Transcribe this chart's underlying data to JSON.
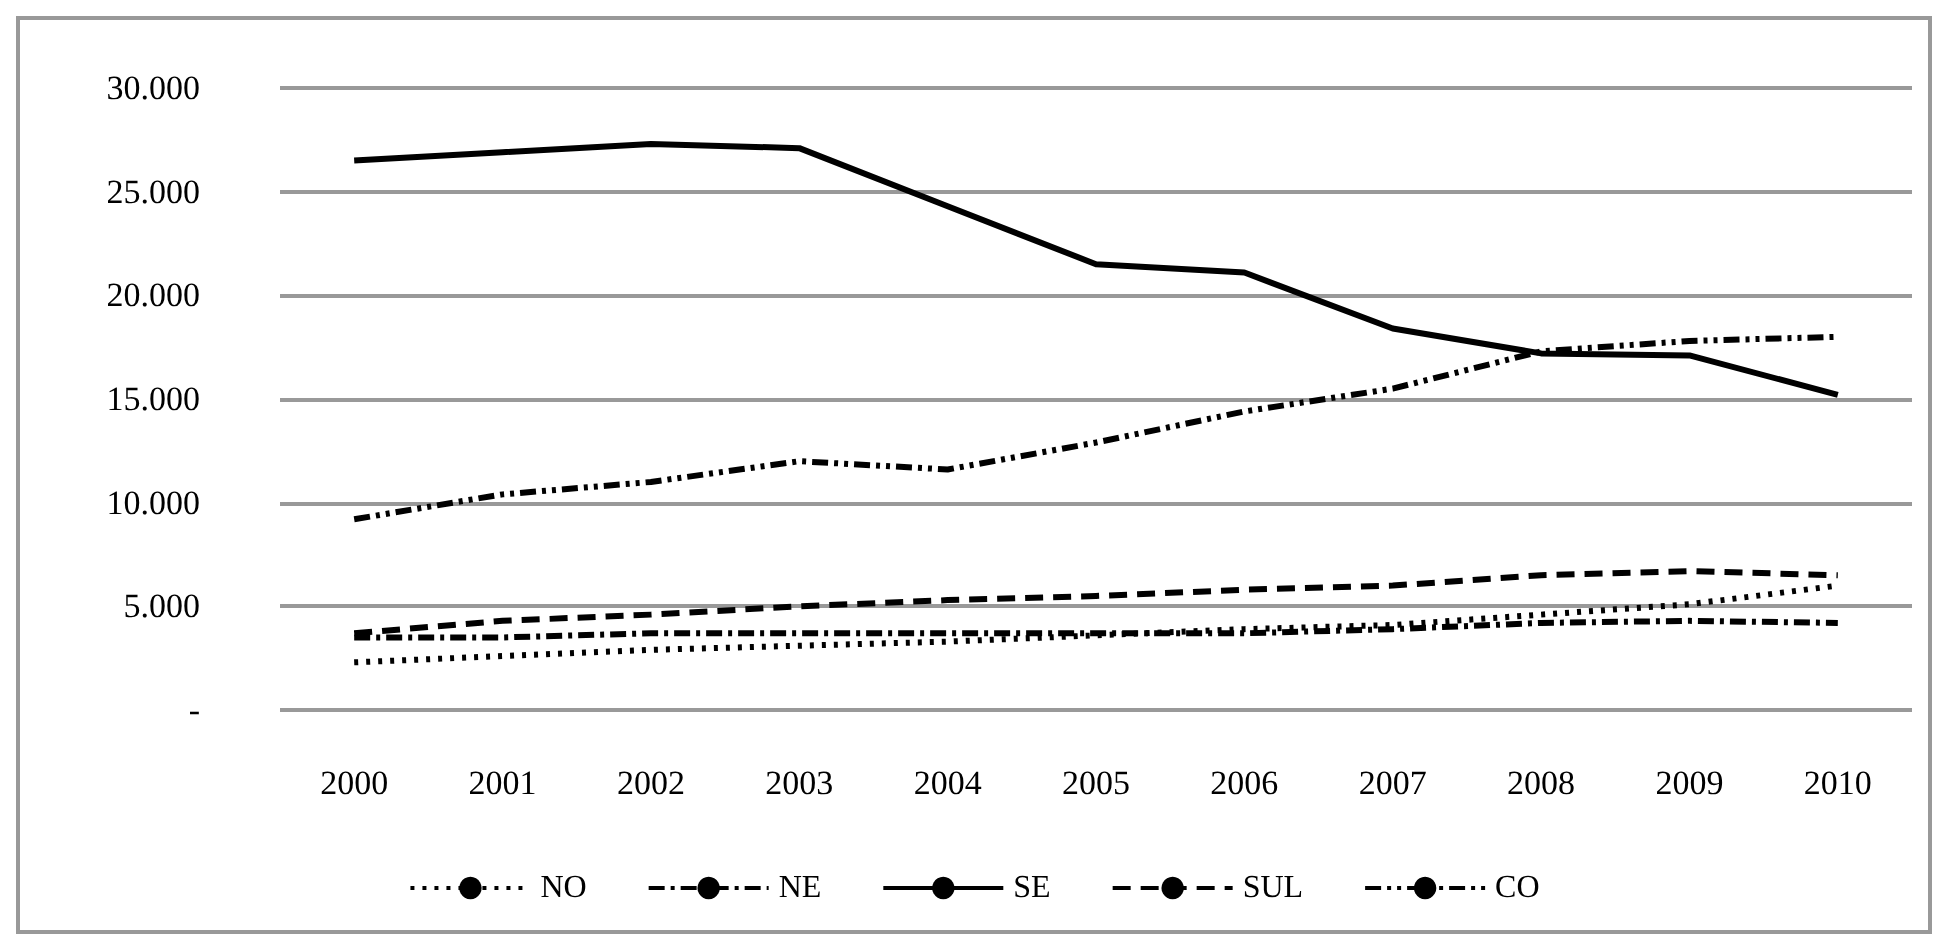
{
  "chart_data": {
    "type": "line",
    "categories": [
      "2000",
      "2001",
      "2002",
      "2003",
      "2004",
      "2005",
      "2006",
      "2007",
      "2008",
      "2009",
      "2010"
    ],
    "series": [
      {
        "name": "NO",
        "color": "#000000",
        "line_style": "dotted",
        "values": [
          2300,
          2600,
          2900,
          3100,
          3300,
          3600,
          3900,
          4100,
          4600,
          5100,
          6000
        ]
      },
      {
        "name": "NE",
        "color": "#000000",
        "line_style": "dashdot",
        "values": [
          3500,
          3500,
          3700,
          3700,
          3700,
          3700,
          3700,
          3900,
          4200,
          4300,
          4200
        ]
      },
      {
        "name": "SE",
        "color": "#000000",
        "line_style": "solid",
        "values": [
          26500,
          26900,
          27300,
          27100,
          24300,
          21500,
          21100,
          18400,
          17200,
          17100,
          15200
        ]
      },
      {
        "name": "SUL",
        "color": "#000000",
        "line_style": "dashed",
        "values": [
          3700,
          4300,
          4600,
          5000,
          5300,
          5500,
          5800,
          6000,
          6500,
          6700,
          6500
        ]
      },
      {
        "name": "CO",
        "color": "#000000",
        "line_style": "dashdotdot",
        "values": [
          9200,
          10400,
          11000,
          12000,
          11600,
          12900,
          14400,
          15500,
          17300,
          17800,
          18000
        ]
      }
    ],
    "ylim": [
      0,
      30000
    ],
    "yticks": [
      {
        "value": 0,
        "label": "-"
      },
      {
        "value": 5000,
        "label": "5.000"
      },
      {
        "value": 10000,
        "label": "10.000"
      },
      {
        "value": 15000,
        "label": "15.000"
      },
      {
        "value": 20000,
        "label": "20.000"
      },
      {
        "value": 25000,
        "label": "25.000"
      },
      {
        "value": 30000,
        "label": "30.000"
      }
    ],
    "grid": "y",
    "legend": "bottom",
    "marker": "none"
  }
}
